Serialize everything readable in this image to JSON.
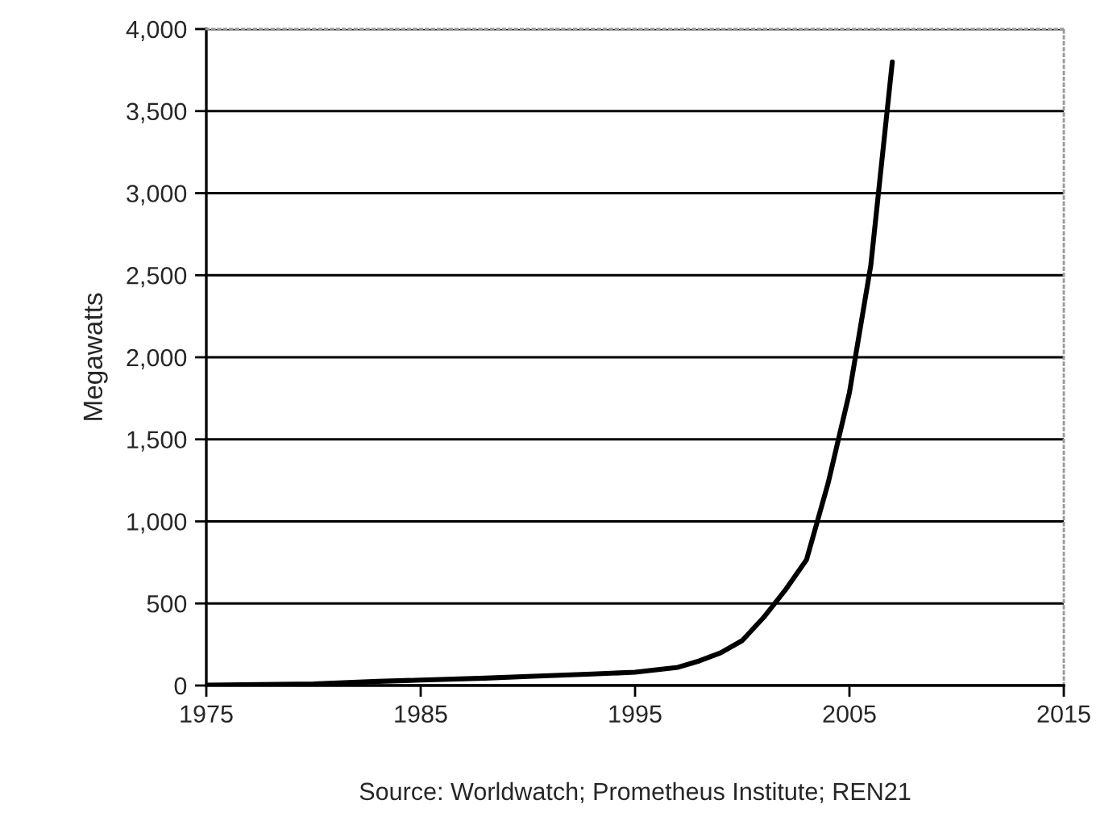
{
  "chart_data": {
    "type": "line",
    "ylabel": "Megawatts",
    "x": [
      1975,
      1980,
      1983,
      1985,
      1988,
      1990,
      1993,
      1995,
      1997,
      1998,
      1999,
      2000,
      2001,
      2002,
      2003,
      2004,
      2005,
      2006,
      2007
    ],
    "series": [
      {
        "color": "#000000",
        "values": [
          2,
          10,
          25,
          33,
          45,
          55,
          70,
          81,
          111,
          150,
          200,
          274,
          415,
          580,
          767,
          1230,
          1785,
          2563,
          3800
        ]
      }
    ],
    "xlim": [
      1975,
      2015
    ],
    "xticks": [
      1975,
      1985,
      1995,
      2005,
      2015
    ],
    "ylim": [
      0,
      4000
    ],
    "yticks": [
      {
        "value": 0,
        "label": "0"
      },
      {
        "value": 500,
        "label": "500"
      },
      {
        "value": 1000,
        "label": "1,000"
      },
      {
        "value": 1500,
        "label": "1,500"
      },
      {
        "value": 2000,
        "label": "2,000"
      },
      {
        "value": 2500,
        "label": "2,500"
      },
      {
        "value": 3000,
        "label": "3,000"
      },
      {
        "value": 3500,
        "label": "3,500"
      },
      {
        "value": 4000,
        "label": "4,000"
      }
    ],
    "grid": "y",
    "marker": "none",
    "line_style": "solid",
    "annotations": [
      "Source: Worldwatch; Prometheus Institute; REN21"
    ]
  }
}
